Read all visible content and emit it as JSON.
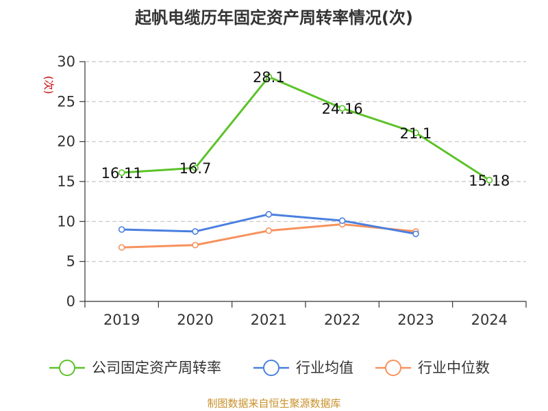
{
  "chart_data": {
    "type": "line",
    "title": "起帆电缆历年固定资产周转率情况(次)",
    "ylabel": "(次)",
    "xlabel": "",
    "categories": [
      "2019",
      "2020",
      "2021",
      "2022",
      "2023",
      "2024"
    ],
    "ylim": [
      0,
      30
    ],
    "yticks": [
      0,
      5,
      10,
      15,
      20,
      25,
      30
    ],
    "grid": true,
    "legend_position": "bottom",
    "series": [
      {
        "name": "公司固定资产周转率",
        "color": "#5cc22a",
        "values": [
          16.11,
          16.7,
          28.1,
          24.16,
          21.1,
          15.18
        ],
        "labels": [
          "16.11",
          "16.7",
          "28.1",
          "24.16",
          "21.1",
          "15.18"
        ]
      },
      {
        "name": "行业均值",
        "color": "#4a7fe0",
        "values": [
          9.0,
          8.75,
          10.9,
          10.1,
          8.45,
          null
        ]
      },
      {
        "name": "行业中位数",
        "color": "#f7915c",
        "values": [
          6.75,
          7.05,
          8.85,
          9.65,
          8.75,
          null
        ]
      }
    ]
  },
  "source": "制图数据来自恒生聚源数据库"
}
